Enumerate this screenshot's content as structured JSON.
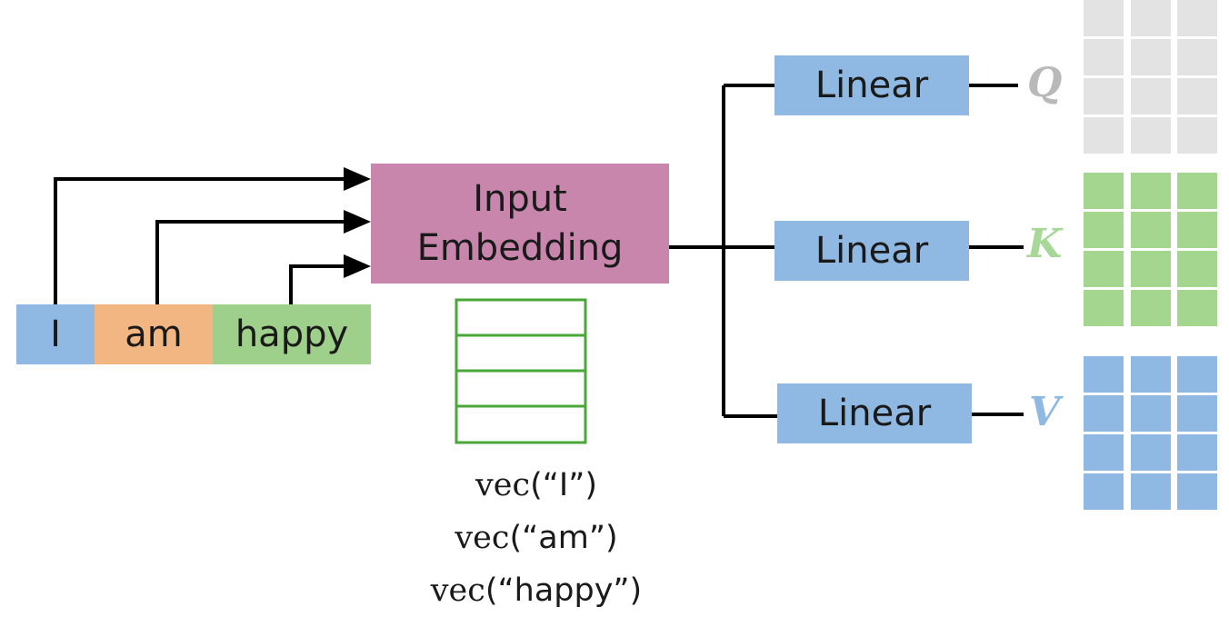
{
  "tokens": [
    "I",
    "am",
    "happy"
  ],
  "embedding": {
    "line1": "Input",
    "line2": "Embedding"
  },
  "vec_fn": "vec",
  "vec_args": [
    "(“I”)",
    "(“am”)",
    "(“happy”)"
  ],
  "linear": {
    "q": "Linear",
    "k": "Linear",
    "v": "Linear"
  },
  "outputs": {
    "q": "Q",
    "k": "K",
    "v": "V"
  },
  "colors": {
    "token_i": "#8fb8e2",
    "token_am": "#f2b682",
    "token_happy": "#9ed08b",
    "embedding": "#c886ad",
    "linear": "#8fb8e2",
    "q_matrix": "#e3e3e3",
    "k_matrix": "#a5d68f",
    "v_matrix": "#8fb8e2",
    "vector_outline": "#4aa83a"
  }
}
